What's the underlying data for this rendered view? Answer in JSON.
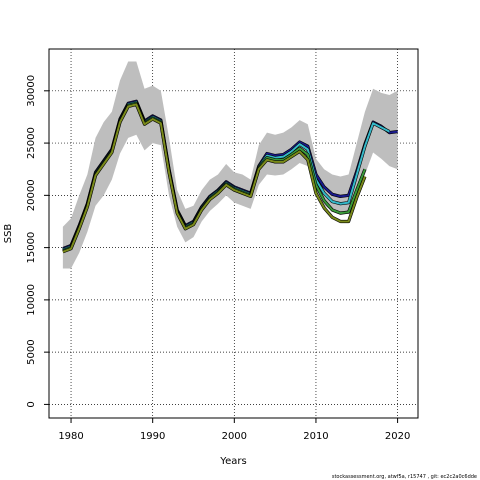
{
  "chart_data": {
    "type": "line",
    "xlabel": "Years",
    "ylabel": "SSB",
    "xlim": [
      1977.3,
      2022.5
    ],
    "ylim": [
      -1300,
      34000
    ],
    "x_ticks": [
      1980,
      1990,
      2000,
      2010,
      2020
    ],
    "y_ticks": [
      0,
      5000,
      10000,
      15000,
      20000,
      25000,
      30000
    ],
    "grid": true,
    "grid_style": "dotted",
    "band_color": "#bebebe",
    "band": {
      "x": [
        1979,
        1980,
        1981,
        1982,
        1983,
        1984,
        1985,
        1986,
        1987,
        1988,
        1989,
        1990,
        1991,
        1992,
        1993,
        1994,
        1995,
        1996,
        1997,
        1998,
        1999,
        2000,
        2001,
        2002,
        2003,
        2004,
        2005,
        2006,
        2007,
        2008,
        2009,
        2010,
        2011,
        2012,
        2013,
        2014,
        2015,
        2016,
        2017,
        2018,
        2019,
        2020
      ],
      "upper": [
        17000,
        17800,
        20000,
        22000,
        25500,
        27000,
        28000,
        31000,
        32800,
        32800,
        30200,
        30500,
        30000,
        25500,
        20500,
        18700,
        19000,
        20500,
        21500,
        22000,
        23000,
        22200,
        22000,
        21500,
        24800,
        26000,
        25800,
        26000,
        26500,
        27200,
        26800,
        23500,
        22500,
        22000,
        21800,
        22000,
        25000,
        28000,
        30200,
        29800,
        29600,
        30000
      ],
      "lower": [
        13000,
        13000,
        14500,
        16500,
        19000,
        20000,
        21500,
        24000,
        25500,
        25800,
        24300,
        25000,
        24800,
        20000,
        17000,
        15500,
        16000,
        17500,
        18500,
        19200,
        20000,
        19300,
        19000,
        18700,
        21000,
        22000,
        21900,
        22000,
        22500,
        23100,
        22800,
        20000,
        19000,
        18500,
        18300,
        18200,
        19500,
        22000,
        24100,
        23500,
        22800,
        22500
      ]
    },
    "series": [
      {
        "color": "#1a1a8c",
        "x": [
          1979,
          1980,
          1981,
          1982,
          1983,
          1984,
          1985,
          1986,
          1987,
          1988,
          1989,
          1990,
          1991,
          1992,
          1993,
          1994,
          1995,
          1996,
          1997,
          1998,
          1999,
          2000,
          2001,
          2002,
          2003,
          2004,
          2005,
          2006,
          2007,
          2008,
          2009,
          2010,
          2011,
          2012,
          2013,
          2014,
          2015,
          2016,
          2017,
          2018,
          2019,
          2020
        ],
        "values": [
          14900,
          15200,
          17100,
          19200,
          22200,
          23300,
          24400,
          27300,
          28800,
          29000,
          27100,
          27600,
          27200,
          22500,
          18600,
          17100,
          17500,
          18900,
          19900,
          20500,
          21300,
          20800,
          20500,
          20200,
          22800,
          24000,
          23800,
          23900,
          24400,
          25100,
          24700,
          22000,
          20800,
          20100,
          19900,
          20000,
          22300,
          24900,
          27000,
          26600,
          26000,
          26100
        ]
      },
      {
        "color": "#35b8c8",
        "x": [
          1979,
          1980,
          1981,
          1982,
          1983,
          1984,
          1985,
          1986,
          1987,
          1988,
          1989,
          1990,
          1991,
          1992,
          1993,
          1994,
          1995,
          1996,
          1997,
          1998,
          1999,
          2000,
          2001,
          2002,
          2003,
          2004,
          2005,
          2006,
          2007,
          2008,
          2009,
          2010,
          2011,
          2012,
          2013,
          2014,
          2015,
          2016,
          2017,
          2018,
          2019
        ],
        "values": [
          14800,
          15100,
          17000,
          19100,
          22100,
          23200,
          24300,
          27200,
          28700,
          28900,
          27000,
          27500,
          27100,
          22400,
          18500,
          17000,
          17400,
          18800,
          19800,
          20400,
          21200,
          20700,
          20400,
          20100,
          22700,
          23800,
          23600,
          23700,
          24200,
          24900,
          24400,
          21500,
          20200,
          19400,
          19200,
          19300,
          22000,
          24700,
          26900,
          26500,
          26100
        ]
      },
      {
        "color": "#3a9a3a",
        "x": [
          1979,
          1980,
          1981,
          1982,
          1983,
          1984,
          1985,
          1986,
          1987,
          1988,
          1989,
          1990,
          1991,
          1992,
          1993,
          1994,
          1995,
          1996,
          1997,
          1998,
          1999,
          2000,
          2001,
          2002,
          2003,
          2004,
          2005,
          2006,
          2007,
          2008,
          2009,
          2010,
          2011,
          2012,
          2013,
          2014,
          2015,
          2016
        ],
        "values": [
          14700,
          15000,
          16900,
          19000,
          22000,
          23100,
          24200,
          27100,
          28600,
          28800,
          26900,
          27400,
          27000,
          22300,
          18400,
          16900,
          17300,
          18700,
          19700,
          20300,
          21100,
          20600,
          20300,
          20000,
          22600,
          23600,
          23400,
          23400,
          23900,
          24500,
          23900,
          21000,
          19500,
          18600,
          18300,
          18400,
          20500,
          22500
        ]
      },
      {
        "color": "#7a8a1a",
        "x": [
          1979,
          1980,
          1981,
          1982,
          1983,
          1984,
          1985,
          1986,
          1987,
          1988,
          1989,
          1990,
          1991,
          1992,
          1993,
          1994,
          1995,
          1996,
          1997,
          1998,
          1999,
          2000,
          2001,
          2002,
          2003,
          2004,
          2005,
          2006,
          2007,
          2008,
          2009,
          2010,
          2011,
          2012,
          2013,
          2014,
          2015,
          2016
        ],
        "values": [
          14600,
          14900,
          16800,
          18900,
          21900,
          23000,
          24100,
          27000,
          28500,
          28700,
          26800,
          27300,
          26900,
          22200,
          18300,
          16800,
          17200,
          18600,
          19600,
          20200,
          21000,
          20500,
          20200,
          19900,
          22500,
          23400,
          23200,
          23200,
          23700,
          24200,
          23400,
          20200,
          18800,
          17900,
          17500,
          17500,
          19800,
          21800
        ]
      }
    ]
  },
  "footer": {
    "text": "stockassessment.org, atwf5a, r15747 , git: ec2c2a0c6dde"
  }
}
